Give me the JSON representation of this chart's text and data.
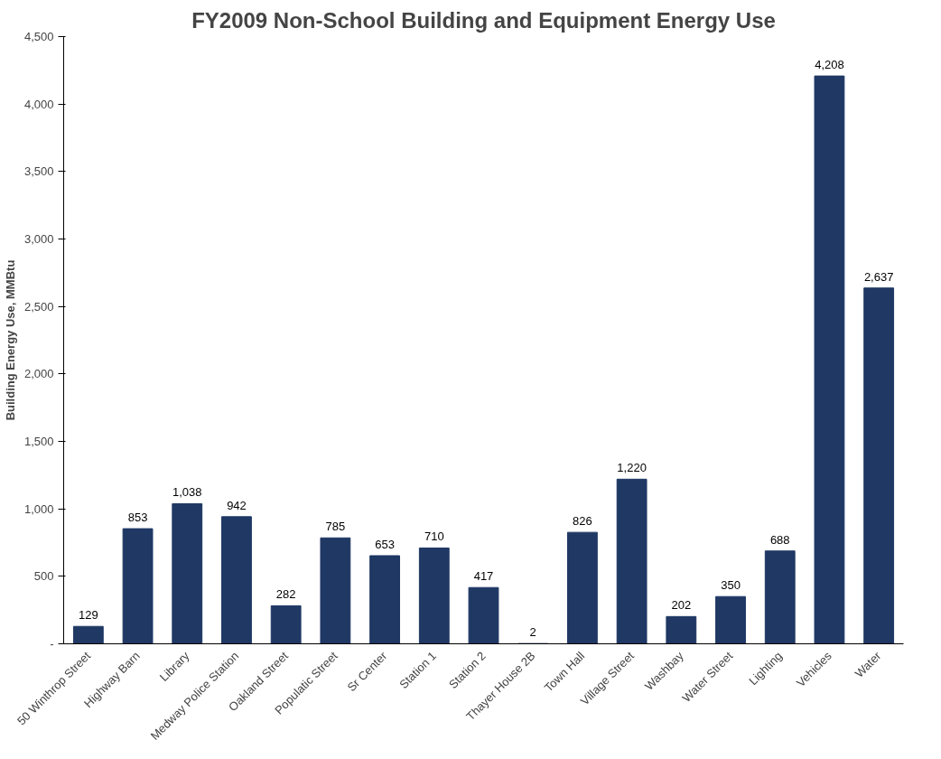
{
  "chart_data": {
    "type": "bar",
    "title": "FY2009 Non-School Building and Equipment Energy Use",
    "ylabel": "Building Energy Use, MMBtu",
    "categories": [
      "50 Winthrop Street",
      "Highway Barn",
      "Library",
      "Medway Police Station",
      "Oakland Street",
      "Populatic Street",
      "Sr Center",
      "Station 1",
      "Station 2",
      "Thayer House 2B",
      "Town Hall",
      "Village Street",
      "Washbay",
      "Water Street",
      "Lighting",
      "Vehicles",
      "Water"
    ],
    "values": [
      129,
      853,
      1038,
      942,
      282,
      785,
      653,
      710,
      417,
      2,
      826,
      1220,
      202,
      350,
      688,
      4208,
      2637
    ],
    "value_labels": [
      "129",
      "853",
      "1,038",
      "942",
      "282",
      "785",
      "653",
      "710",
      "417",
      "2",
      "826",
      "1,220",
      "202",
      "350",
      "688",
      "4,208",
      "2,637"
    ],
    "color": "#1f3864",
    "ylim": [
      0,
      4500
    ],
    "yticks": [
      {
        "value": 0,
        "label": "-"
      },
      {
        "value": 500,
        "label": "500"
      },
      {
        "value": 1000,
        "label": "1,000"
      },
      {
        "value": 1500,
        "label": "1,500"
      },
      {
        "value": 2000,
        "label": "2,000"
      },
      {
        "value": 2500,
        "label": "2,500"
      },
      {
        "value": 3000,
        "label": "3,000"
      },
      {
        "value": 3500,
        "label": "3,500"
      },
      {
        "value": 4000,
        "label": "4,000"
      },
      {
        "value": 4500,
        "label": "4,500"
      }
    ],
    "grid": false
  }
}
